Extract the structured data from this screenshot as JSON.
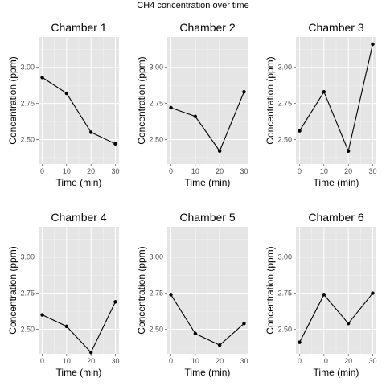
{
  "title": "CH4 concentration over time",
  "chart_data": [
    {
      "type": "line",
      "title": "Chamber  1",
      "xlabel": "Time (min)",
      "ylabel": "Concentration (ppm)",
      "x": [
        0,
        10,
        20,
        30
      ],
      "y": [
        2.93,
        2.82,
        2.55,
        2.47
      ],
      "xlim": [
        -1.5,
        31.5
      ],
      "ylim": [
        2.33,
        3.21
      ],
      "xticks": [
        "0",
        "10",
        "20",
        "30"
      ],
      "yticks": [
        "2.50",
        "2.75",
        "3.00"
      ],
      "grid": true
    },
    {
      "type": "line",
      "title": "Chamber  2",
      "xlabel": "Time (min)",
      "ylabel": "Concentration (ppm)",
      "x": [
        0,
        10,
        20,
        30
      ],
      "y": [
        2.72,
        2.66,
        2.42,
        2.83
      ],
      "xlim": [
        -1.5,
        31.5
      ],
      "ylim": [
        2.33,
        3.21
      ],
      "xticks": [
        "0",
        "10",
        "20",
        "30"
      ],
      "yticks": [
        "2.50",
        "2.75",
        "3.00"
      ],
      "grid": true
    },
    {
      "type": "line",
      "title": "Chamber  3",
      "xlabel": "Time (min)",
      "ylabel": "Concentration (ppm)",
      "x": [
        0,
        10,
        20,
        30
      ],
      "y": [
        2.56,
        2.83,
        2.42,
        3.16
      ],
      "xlim": [
        -1.5,
        31.5
      ],
      "ylim": [
        2.33,
        3.21
      ],
      "xticks": [
        "0",
        "10",
        "20",
        "30"
      ],
      "yticks": [
        "2.50",
        "2.75",
        "3.00"
      ],
      "grid": true
    },
    {
      "type": "line",
      "title": "Chamber  4",
      "xlabel": "Time (min)",
      "ylabel": "Concentration (ppm)",
      "x": [
        0,
        10,
        20,
        30
      ],
      "y": [
        2.6,
        2.52,
        2.34,
        2.69
      ],
      "xlim": [
        -1.5,
        31.5
      ],
      "ylim": [
        2.33,
        3.21
      ],
      "xticks": [
        "0",
        "10",
        "20",
        "30"
      ],
      "yticks": [
        "2.50",
        "2.75",
        "3.00"
      ],
      "grid": true
    },
    {
      "type": "line",
      "title": "Chamber  5",
      "xlabel": "Time (min)",
      "ylabel": "Concentration (ppm)",
      "x": [
        0,
        10,
        20,
        30
      ],
      "y": [
        2.74,
        2.47,
        2.39,
        2.54
      ],
      "xlim": [
        -1.5,
        31.5
      ],
      "ylim": [
        2.33,
        3.21
      ],
      "xticks": [
        "0",
        "10",
        "20",
        "30"
      ],
      "yticks": [
        "2.50",
        "2.75",
        "3.00"
      ],
      "grid": true
    },
    {
      "type": "line",
      "title": "Chamber  6",
      "xlabel": "Time (min)",
      "ylabel": "Concentration (ppm)",
      "x": [
        0,
        10,
        20,
        30
      ],
      "y": [
        2.41,
        2.74,
        2.54,
        2.75
      ],
      "xlim": [
        -1.5,
        31.5
      ],
      "ylim": [
        2.33,
        3.21
      ],
      "xticks": [
        "0",
        "10",
        "20",
        "30"
      ],
      "yticks": [
        "2.50",
        "2.75",
        "3.00"
      ],
      "grid": true
    }
  ],
  "colors": {
    "panel_bg": "#e5e5e5",
    "grid_major": "#ffffff",
    "grid_minor": "#f2f2f2",
    "line": "#000000",
    "tick_text": "#4d4d4d"
  }
}
